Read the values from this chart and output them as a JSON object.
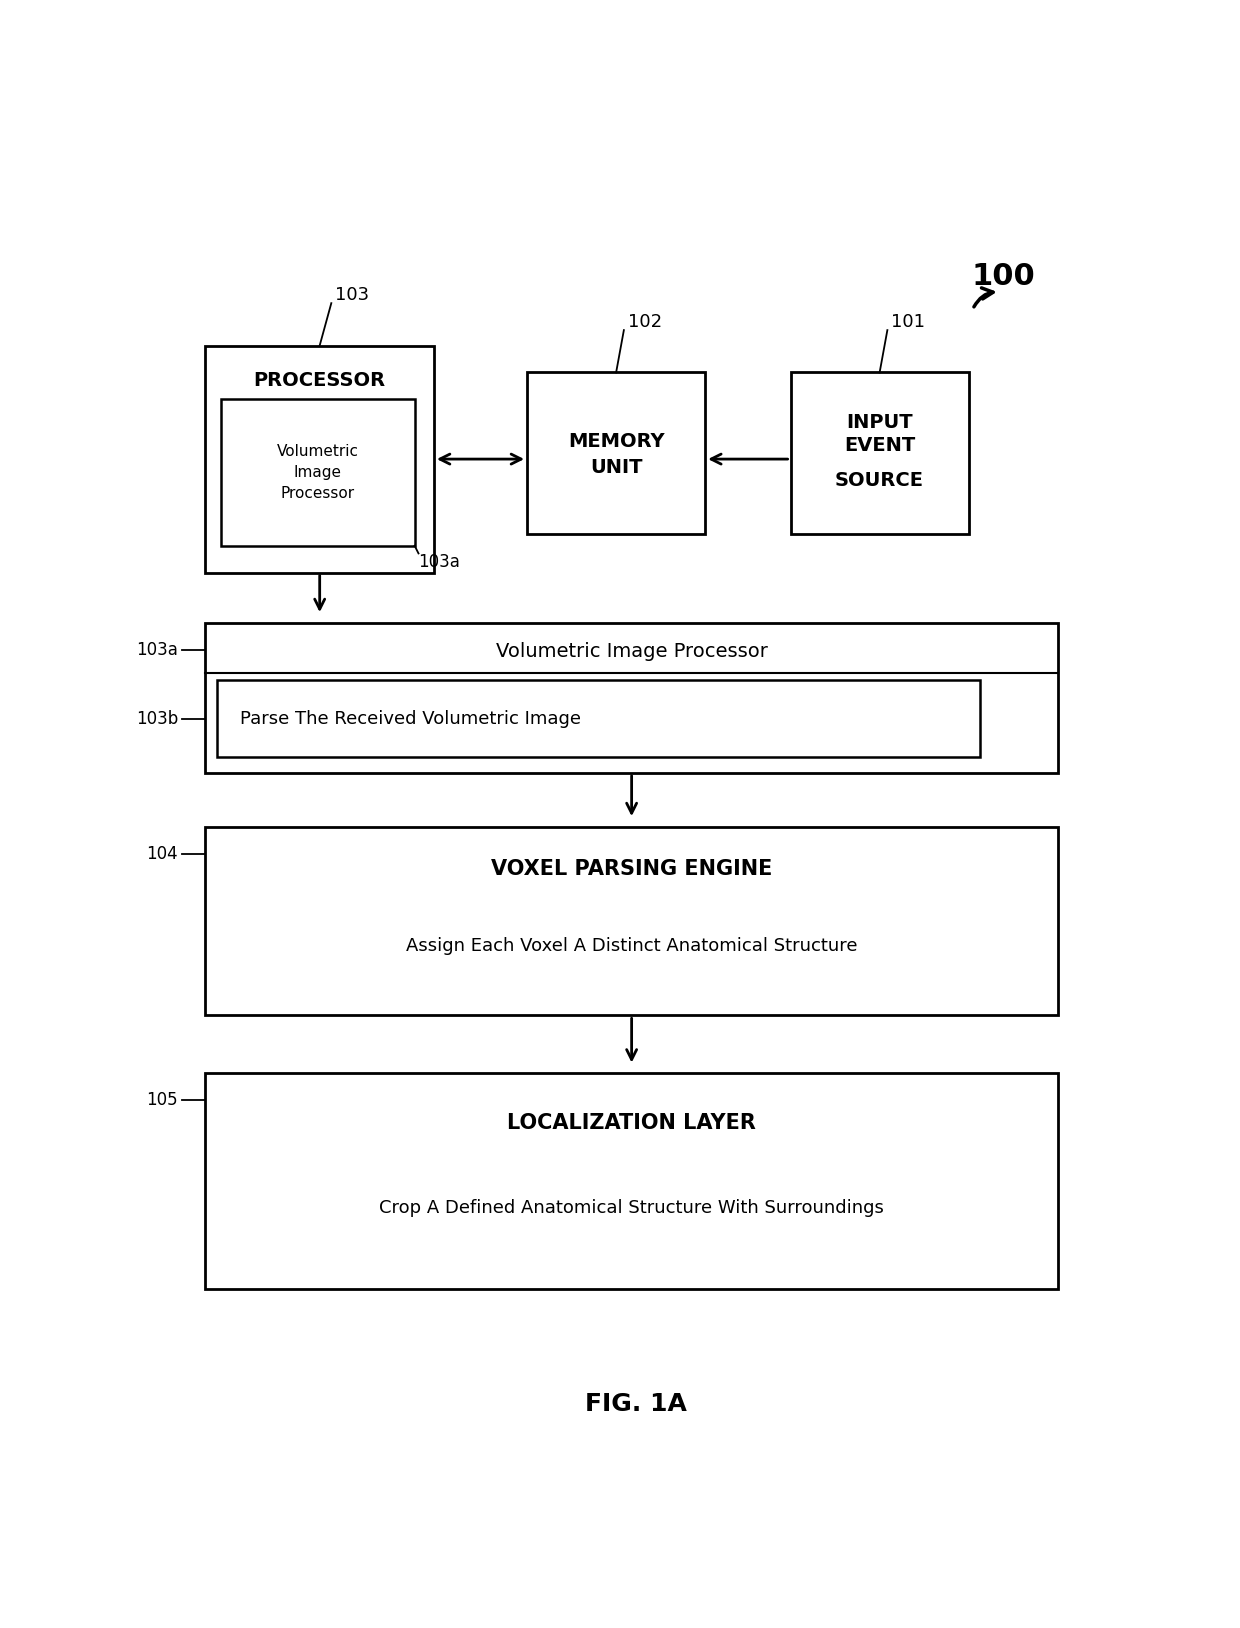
{
  "bg_color": "#ffffff",
  "fig_width": 12.4,
  "fig_height": 16.28,
  "title": "FIG. 1A",
  "ref_100": "100",
  "ref_101": "101",
  "ref_102": "102",
  "ref_103": "103",
  "ref_103a": "103a",
  "ref_103b": "103b",
  "ref_104": "104",
  "ref_105": "105",
  "box_processor_label": "PROCESSOR",
  "box_processor_sub": "Volumetric\nImage\nProcessor",
  "box_memory_line1": "MEMORY",
  "box_memory_line2": "UNIT",
  "box_input_line1": "INPUT",
  "box_input_line2": "EVENT",
  "box_input_line3": "",
  "box_input_line4": "SOURCE",
  "box_vip_label": "Volumetric Image Processor",
  "box_parse_label": "Parse The Received Volumetric Image",
  "box_voxel_title": "VOXEL PARSING ENGINE",
  "box_voxel_sub": "Assign Each Voxel A Distinct Anatomical Structure",
  "box_local_title": "LOCALIZATION LAYER",
  "box_local_sub": "Crop A Defined Anatomical Structure With Surroundings"
}
